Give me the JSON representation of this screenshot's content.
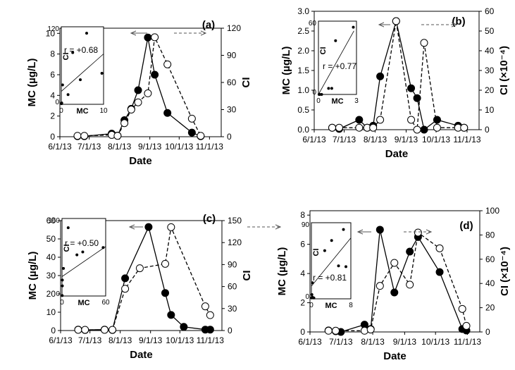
{
  "chart_data": [
    {
      "type": "line",
      "panel": "(a)",
      "xlabel": "Date",
      "ylabel_left": "MC (µg/L)",
      "ylabel_right": "CI",
      "x_ticks": [
        "6/1/13",
        "7/1/13",
        "8/1/13",
        "9/1/13",
        "10/1/13",
        "11/1/13"
      ],
      "left_ticks": [
        "0",
        "2",
        "4",
        "6",
        "8",
        "10"
      ],
      "right_ticks": [
        "0",
        "30",
        "60",
        "90",
        "120"
      ],
      "left_range": [
        0,
        10.5
      ],
      "right_range": [
        0,
        120
      ],
      "series": [
        {
          "name": "MC",
          "axis": "left",
          "marker": "filled",
          "style": "solid",
          "x": [
            "6/19/13",
            "6/26/13",
            "7/24/13",
            "7/30/13",
            "8/6/13",
            "8/13/13",
            "8/20/13",
            "8/30/13",
            "9/6/13",
            "9/19/13",
            "10/14/13",
            "10/23/13"
          ],
          "y": [
            0.05,
            0.05,
            0.3,
            0.1,
            1.6,
            2.7,
            4.5,
            9.6,
            6.0,
            2.3,
            0.4,
            0.05
          ]
        },
        {
          "name": "CI",
          "axis": "right",
          "marker": "open",
          "style": "dashed",
          "x": [
            "6/19/13",
            "6/26/13",
            "7/24/13",
            "7/30/13",
            "8/6/13",
            "8/13/13",
            "8/20/13",
            "8/30/13",
            "9/6/13",
            "9/19/13",
            "10/14/13",
            "10/23/13"
          ],
          "y": [
            1,
            1,
            2,
            1,
            15,
            30,
            38,
            48,
            110,
            80,
            20,
            1
          ]
        }
      ],
      "inset": {
        "type": "scatter",
        "xlabel": "MC",
        "ylabel": "CI",
        "x_ticks": [
          "0",
          "10"
        ],
        "y_ticks": [
          "0",
          "120"
        ],
        "xlim": [
          0,
          10
        ],
        "ylim": [
          0,
          120
        ],
        "annotation": "r = +0.68",
        "x": [
          0.05,
          0.1,
          0.3,
          1.6,
          2.7,
          4.5,
          6.0,
          9.6
        ],
        "y": [
          1,
          2,
          30,
          15,
          80,
          38,
          110,
          48
        ],
        "fit": [
          [
            0,
            20
          ],
          [
            10,
            78
          ]
        ]
      }
    },
    {
      "type": "line",
      "panel": "(b)",
      "xlabel": "Date",
      "ylabel_left": "MC (µg/L)",
      "ylabel_right": "CI (×10⁻⁴)",
      "x_ticks": [
        "6/1/13",
        "7/1/13",
        "8/1/13",
        "9/1/13",
        "10/1/13",
        "11/1/13"
      ],
      "left_ticks": [
        "0.0",
        "0.5",
        "1.0",
        "1.5",
        "2.0",
        "2.5",
        "3.0"
      ],
      "right_ticks": [
        "0",
        "10",
        "20",
        "30",
        "40",
        "50",
        "60"
      ],
      "left_range": [
        0,
        3.0
      ],
      "right_range": [
        0,
        60
      ],
      "series": [
        {
          "name": "MC",
          "axis": "left",
          "marker": "filled",
          "style": "solid",
          "x": [
            "6/19/13",
            "6/26/13",
            "7/16/13",
            "7/24/13",
            "7/30/13",
            "8/6/13",
            "8/22/13",
            "9/6/13",
            "9/12/13",
            "9/19/13",
            "10/2/13",
            "10/23/13",
            "10/29/13"
          ],
          "y": [
            0.05,
            0.02,
            0.25,
            0.05,
            0.1,
            1.35,
            2.75,
            1.05,
            0.8,
            0.0,
            0.25,
            0.1,
            0.05
          ]
        },
        {
          "name": "CI",
          "axis": "right",
          "marker": "open",
          "style": "dashed",
          "x": [
            "6/19/13",
            "6/26/13",
            "7/16/13",
            "7/24/13",
            "7/30/13",
            "8/6/13",
            "8/22/13",
            "9/6/13",
            "9/12/13",
            "9/19/13",
            "10/2/13",
            "10/23/13",
            "10/29/13"
          ],
          "y": [
            1,
            1,
            1,
            1,
            1,
            5,
            55,
            5,
            0,
            44,
            1,
            1,
            1
          ]
        }
      ],
      "inset": {
        "type": "scatter",
        "xlabel": "MC",
        "ylabel": "CI",
        "x_ticks": [
          "0",
          "3"
        ],
        "y_ticks": [
          "0",
          "60"
        ],
        "xlim": [
          0,
          3
        ],
        "ylim": [
          0,
          60
        ],
        "annotation": "r = +0.77",
        "x": [
          0.05,
          0.1,
          0.25,
          0.8,
          1.05,
          1.35,
          2.75
        ],
        "y": [
          0,
          0,
          0,
          5,
          5,
          44,
          55
        ],
        "fit": [
          [
            0,
            0
          ],
          [
            2.8,
            52
          ]
        ]
      }
    },
    {
      "type": "line",
      "panel": "(c)",
      "xlabel": "Date",
      "ylabel_left": "MC (µg/L)",
      "ylabel_right": "CI",
      "x_ticks": [
        "6/1/13",
        "7/1/13",
        "8/1/13",
        "9/1/13",
        "10/1/13",
        "11/1/13"
      ],
      "left_ticks": [
        "0",
        "10",
        "20",
        "30",
        "40",
        "50",
        "60"
      ],
      "right_ticks": [
        "0",
        "30",
        "60",
        "90",
        "120",
        "150"
      ],
      "left_range": [
        0,
        60
      ],
      "right_range": [
        0,
        150
      ],
      "series": [
        {
          "name": "MC",
          "axis": "left",
          "marker": "filled",
          "style": "solid",
          "x": [
            "6/19/13",
            "6/26/13",
            "7/16/13",
            "7/24/13",
            "8/6/13",
            "8/30/13",
            "9/16/13",
            "9/22/13",
            "10/5/13",
            "10/27/13",
            "11/1/13"
          ],
          "y": [
            0.5,
            0.3,
            0.5,
            0.3,
            28.5,
            56.5,
            20.5,
            8.5,
            2.0,
            0.5,
            0.5
          ]
        },
        {
          "name": "CI",
          "axis": "right",
          "marker": "open",
          "style": "dashed",
          "x": [
            "6/19/13",
            "6/26/13",
            "7/16/13",
            "7/24/13",
            "8/6/13",
            "8/21/13",
            "9/16/13",
            "9/22/13",
            "10/27/13",
            "11/1/13"
          ],
          "y": [
            1,
            1,
            1,
            1,
            57,
            85,
            91,
            141,
            33,
            21
          ]
        }
      ],
      "inset": {
        "type": "scatter",
        "xlabel": "MC",
        "ylabel": "CI",
        "x_ticks": [
          "0",
          "60"
        ],
        "y_ticks": [
          "0",
          "160"
        ],
        "xlim": [
          0,
          60
        ],
        "ylim": [
          0,
          160
        ],
        "annotation": "r = +0.50",
        "x": [
          0.3,
          0.5,
          0.5,
          2.0,
          8.5,
          20.5,
          28.5,
          56.5
        ],
        "y": [
          1,
          21,
          33,
          57,
          141,
          85,
          91,
          100
        ],
        "fit": [
          [
            0,
            40
          ],
          [
            60,
            102
          ]
        ]
      }
    },
    {
      "type": "line",
      "panel": "(d)",
      "xlabel": "Date",
      "ylabel_left": "MC (µg/L)",
      "ylabel_right": "CI (×10⁻⁴)",
      "x_ticks": [
        "6/1/13",
        "7/1/13",
        "8/1/13",
        "9/1/13",
        "10/1/13",
        "11/1/13"
      ],
      "left_ticks": [
        "0",
        "2",
        "4",
        "6",
        "8"
      ],
      "right_ticks": [
        "0",
        "20",
        "40",
        "60",
        "80",
        "100"
      ],
      "left_range": [
        0,
        8.3
      ],
      "right_range": [
        0,
        100
      ],
      "series": [
        {
          "name": "MC",
          "axis": "left",
          "marker": "filled",
          "style": "solid",
          "x": [
            "6/19/13",
            "6/26/13",
            "7/1/13",
            "7/24/13",
            "7/30/13",
            "8/8/13",
            "8/22/13",
            "9/6/13",
            "9/14/13",
            "10/5/13",
            "10/27/13",
            "10/31/13"
          ],
          "y": [
            0.1,
            0.05,
            0.0,
            0.5,
            0.2,
            7.0,
            2.7,
            5.5,
            6.5,
            4.1,
            0.2,
            0.1
          ]
        },
        {
          "name": "CI",
          "axis": "right",
          "marker": "open",
          "style": "dashed",
          "x": [
            "6/19/13",
            "6/26/13",
            "7/24/13",
            "7/30/13",
            "8/8/13",
            "8/22/13",
            "9/6/13",
            "9/14/13",
            "10/5/13",
            "10/27/13",
            "10/31/13"
          ],
          "y": [
            1,
            1,
            1,
            2,
            38,
            57,
            39,
            82,
            69,
            19,
            5
          ]
        }
      ],
      "inset": {
        "type": "scatter",
        "xlabel": "MC",
        "ylabel": "CI",
        "x_ticks": [
          "0",
          "8"
        ],
        "y_ticks": [
          "0",
          "90"
        ],
        "xlim": [
          0,
          8
        ],
        "ylim": [
          0,
          90
        ],
        "annotation": "r = +0.81",
        "x": [
          0.05,
          0.1,
          0.2,
          0.2,
          0.5,
          2.7,
          4.1,
          5.5,
          6.5,
          7.0
        ],
        "y": [
          1,
          5,
          2,
          19,
          1,
          57,
          69,
          39,
          82,
          38
        ],
        "fit": [
          [
            0,
            15
          ],
          [
            8,
            72
          ]
        ]
      }
    }
  ]
}
